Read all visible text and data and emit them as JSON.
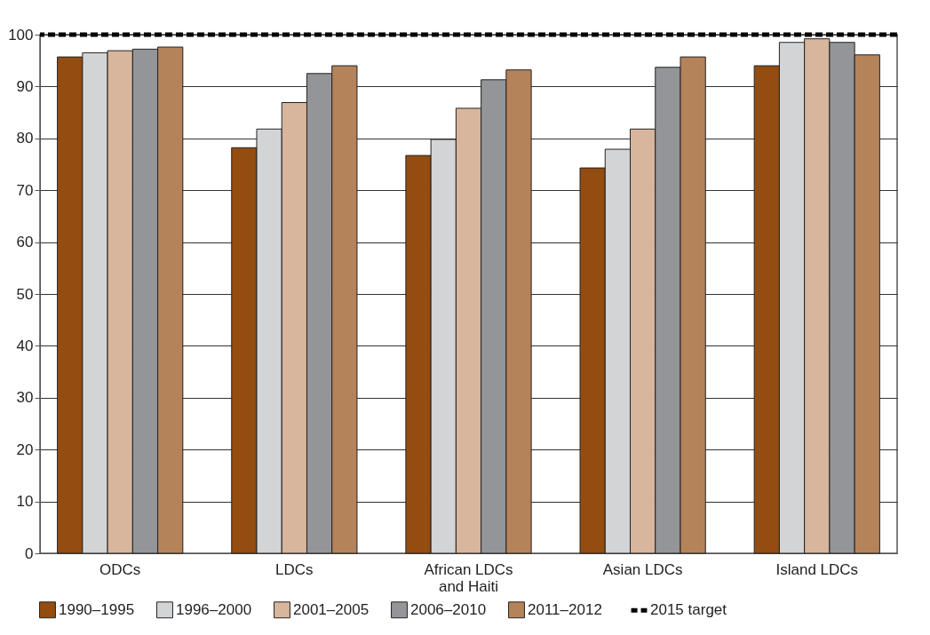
{
  "chart_data": {
    "type": "bar",
    "categories": [
      "ODCs",
      "LDCs",
      "African LDCs and Haiti",
      "Asian LDCs",
      "Island LDCs"
    ],
    "series": [
      {
        "name": "1990–1995",
        "color": "#934d11",
        "values": [
          95.7,
          78.2,
          76.7,
          74.3,
          94.0
        ]
      },
      {
        "name": "1996–2000",
        "color": "#d3d4d6",
        "values": [
          96.5,
          81.8,
          79.8,
          77.9,
          98.5
        ]
      },
      {
        "name": "2001–2005",
        "color": "#d7b69d",
        "values": [
          96.9,
          86.9,
          85.8,
          81.8,
          99.2
        ]
      },
      {
        "name": "2006–2010",
        "color": "#949599",
        "values": [
          97.2,
          92.5,
          91.3,
          93.7,
          98.5
        ]
      },
      {
        "name": "2011–2012",
        "color": "#b5835a",
        "values": [
          97.6,
          94.0,
          93.2,
          95.7,
          96.1
        ]
      }
    ],
    "ylim": [
      0,
      100
    ],
    "yticks": [
      0,
      10,
      20,
      30,
      40,
      50,
      60,
      70,
      80,
      90,
      100
    ],
    "grid": "y",
    "legend": "bottom",
    "ref_lines": [
      {
        "axis": "y",
        "value": 100,
        "label": "2015 target",
        "color": "#000000",
        "line_style": "dashed"
      }
    ]
  }
}
